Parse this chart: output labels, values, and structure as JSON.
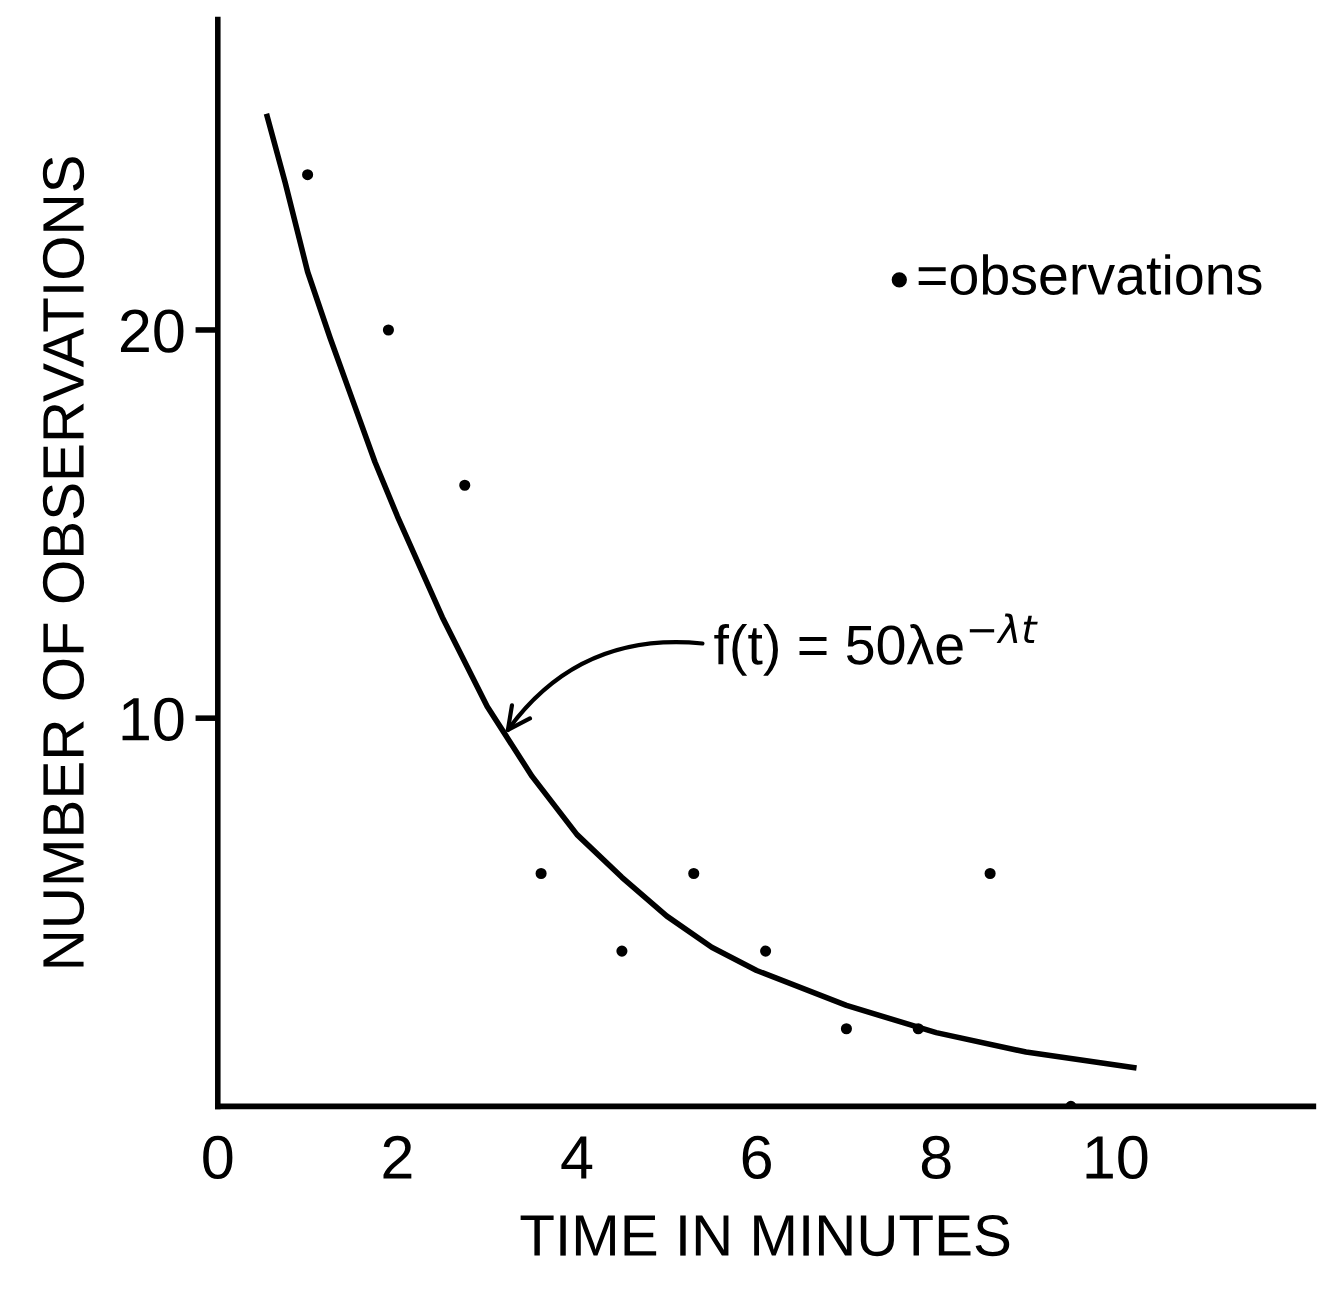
{
  "chart_data": {
    "type": "scatter",
    "xlabel": "TIME IN MINUTES",
    "ylabel": "NUMBER OF OBSERVATIONS",
    "xlim": [
      0,
      12.2
    ],
    "ylim": [
      0,
      28
    ],
    "xticks": [
      0,
      2,
      4,
      6,
      8,
      10
    ],
    "yticks": [
      10,
      20
    ],
    "grid": false,
    "legend": "top right",
    "series": [
      {
        "name": "=observations",
        "color": "#000000",
        "marker": "circle",
        "x": [
          1.0,
          1.9,
          2.75,
          3.6,
          4.5,
          5.3,
          6.1,
          7.0,
          7.8,
          8.6,
          9.5
        ],
        "values": [
          24,
          20,
          16,
          6,
          4,
          6,
          4,
          2,
          2,
          6,
          0
        ]
      },
      {
        "type": "line",
        "color": "#000000",
        "marker": "none",
        "line_style": "solid",
        "x": [
          0.55,
          0.75,
          1,
          1.25,
          1.5,
          1.75,
          2,
          2.5,
          3,
          3.5,
          4,
          4.5,
          5,
          5.5,
          6,
          7,
          8,
          9,
          10.2
        ],
        "values": [
          25.5,
          23.8,
          21.5,
          19.8,
          18.2,
          16.6,
          15.2,
          12.6,
          10.3,
          8.5,
          7.0,
          5.9,
          4.9,
          4.1,
          3.5,
          2.6,
          1.9,
          1.4,
          1.0
        ]
      }
    ],
    "annotations": [
      {
        "text": "f(t) = 50λe$^{−λt}$",
        "x": 3.2,
        "y": 9.6
      }
    ]
  }
}
